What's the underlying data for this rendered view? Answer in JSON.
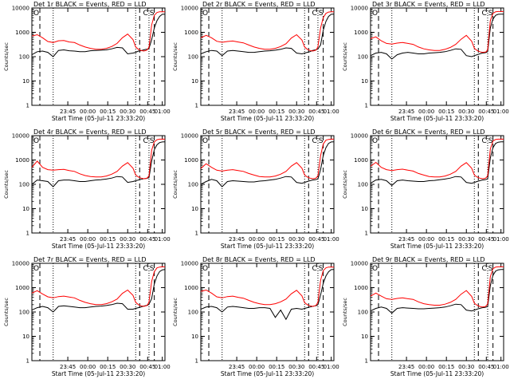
{
  "colors": {
    "events": "#000000",
    "lld": "#ff0000",
    "axes": "#000000",
    "background": "#ffffff"
  },
  "chart_data": {
    "type": "line",
    "layout": "3x3 grid of log-scale time-series panels",
    "x": [
      0,
      0.04,
      0.08,
      0.12,
      0.16,
      0.2,
      0.24,
      0.28,
      0.32,
      0.36,
      0.4,
      0.44,
      0.48,
      0.52,
      0.56,
      0.6,
      0.64,
      0.68,
      0.72,
      0.76,
      0.78,
      0.8,
      0.82,
      0.84,
      0.86,
      0.87,
      0.88,
      0.9,
      0.92,
      0.94,
      0.96,
      0.98,
      1.0
    ],
    "xlabel": "Start Time (05-Jul-11 23:33:20)",
    "xticks": [
      "23:45",
      "00:00",
      "00:15",
      "00:30",
      "00:45",
      "01:00"
    ],
    "ylabel": "Counts/sec",
    "yticks": [
      "1",
      "10",
      "100",
      "1000",
      "10000"
    ],
    "ylim": [
      1,
      10000
    ],
    "yscale": "log",
    "annotations": [
      "O",
      "C",
      "S"
    ],
    "legend": "in title: BLACK = Events, RED = LLD",
    "panels": [
      {
        "title": "Det 1r  BLACK = Events, RED = LLD",
        "series": [
          {
            "name": "Events",
            "color": "#000000",
            "values": [
              120,
              160,
              170,
              150,
              100,
              180,
              190,
              175,
              170,
              160,
              160,
              175,
              180,
              185,
              190,
              210,
              240,
              230,
              130,
              140,
              150,
              170,
              175,
              190,
              200,
              200,
              220,
              500,
              1500,
              3000,
              4500,
              5500,
              5500
            ]
          },
          {
            "name": "LLD",
            "color": "#ff0000",
            "values": [
              700,
              800,
              600,
              420,
              380,
              450,
              460,
              400,
              380,
              300,
              250,
              220,
              200,
              200,
              220,
              260,
              350,
              600,
              850,
              500,
              250,
              200,
              180,
              170,
              180,
              200,
              250,
              2000,
              5000,
              6500,
              7000,
              7000,
              7000
            ]
          }
        ]
      },
      {
        "title": "Det 2r  BLACK = Events, RED = LLD",
        "series": [
          {
            "name": "Events",
            "color": "#000000",
            "values": [
              130,
              160,
              180,
              170,
              110,
              170,
              180,
              170,
              160,
              150,
              150,
              160,
              170,
              175,
              185,
              200,
              230,
              220,
              140,
              130,
              140,
              150,
              160,
              180,
              190,
              195,
              210,
              300,
              1200,
              2800,
              4500,
              5500,
              5600
            ]
          },
          {
            "name": "LLD",
            "color": "#ff0000",
            "values": [
              600,
              750,
              600,
              430,
              390,
              420,
              440,
              400,
              370,
              300,
              250,
              220,
              200,
              200,
              220,
              260,
              340,
              580,
              800,
              480,
              250,
              200,
              180,
              170,
              180,
              200,
              260,
              1500,
              4000,
              6000,
              6800,
              7000,
              7000
            ]
          }
        ]
      },
      {
        "title": "Det 3r  BLACK = Events, RED = LLD",
        "series": [
          {
            "name": "Events",
            "color": "#000000",
            "values": [
              110,
              140,
              150,
              130,
              80,
              120,
              140,
              150,
              140,
              130,
              130,
              140,
              145,
              150,
              160,
              180,
              210,
              200,
              110,
              100,
              110,
              120,
              130,
              140,
              145,
              150,
              160,
              1500,
              3500,
              5000,
              5500,
              5600,
              5600
            ]
          },
          {
            "name": "LLD",
            "color": "#ff0000",
            "values": [
              550,
              650,
              450,
              350,
              330,
              360,
              380,
              350,
              320,
              250,
              210,
              190,
              180,
              180,
              200,
              240,
              320,
              520,
              750,
              430,
              220,
              180,
              160,
              150,
              155,
              160,
              200,
              3000,
              6000,
              7000,
              7200,
              7200,
              7200
            ]
          }
        ]
      },
      {
        "title": "Det 4r  BLACK = Events, RED = LLD",
        "series": [
          {
            "name": "Events",
            "color": "#000000",
            "values": [
              100,
              150,
              140,
              130,
              80,
              140,
              150,
              150,
              140,
              130,
              130,
              140,
              150,
              155,
              165,
              180,
              210,
              200,
              120,
              130,
              140,
              150,
              160,
              170,
              175,
              180,
              190,
              900,
              2600,
              4200,
              5200,
              5500,
              5600
            ]
          },
          {
            "name": "LLD",
            "color": "#ff0000",
            "values": [
              500,
              900,
              500,
              400,
              380,
              400,
              410,
              370,
              340,
              270,
              230,
              210,
              200,
              200,
              220,
              260,
              340,
              560,
              780,
              460,
              240,
              200,
              180,
              170,
              175,
              190,
              230,
              2500,
              5500,
              6800,
              7200,
              7200,
              7200
            ]
          }
        ]
      },
      {
        "title": "Det 5r  BLACK = Events, RED = LLD",
        "series": [
          {
            "name": "Events",
            "color": "#000000",
            "values": [
              100,
              130,
              160,
              140,
              80,
              130,
              140,
              135,
              130,
              125,
              125,
              135,
              140,
              150,
              160,
              180,
              210,
              200,
              120,
              110,
              120,
              130,
              140,
              150,
              155,
              160,
              170,
              400,
              1500,
              3200,
              4800,
              5500,
              5600
            ]
          },
          {
            "name": "LLD",
            "color": "#ff0000",
            "values": [
              450,
              700,
              500,
              380,
              350,
              380,
              400,
              370,
              340,
              280,
              240,
              210,
              200,
              200,
              220,
              260,
              340,
              560,
              780,
              460,
              240,
              200,
              180,
              170,
              175,
              190,
              230,
              1500,
              4500,
              6500,
              7000,
              7200,
              7200
            ]
          }
        ]
      },
      {
        "title": "Det 6r  BLACK = Events, RED = LLD",
        "series": [
          {
            "name": "Events",
            "color": "#000000",
            "values": [
              110,
              150,
              160,
              140,
              90,
              140,
              150,
              140,
              135,
              130,
              130,
              140,
              145,
              155,
              165,
              180,
              210,
              200,
              120,
              110,
              120,
              130,
              140,
              150,
              155,
              160,
              170,
              1200,
              3200,
              4800,
              5400,
              5600,
              5600
            ]
          },
          {
            "name": "LLD",
            "color": "#ff0000",
            "values": [
              550,
              800,
              500,
              400,
              370,
              400,
              420,
              380,
              350,
              280,
              240,
              210,
              200,
              200,
              220,
              260,
              340,
              560,
              780,
              460,
              240,
              200,
              180,
              170,
              175,
              190,
              230,
              2800,
              6000,
              7000,
              7200,
              7200,
              7200
            ]
          }
        ]
      },
      {
        "title": "Det 7r  BLACK = Events, RED = LLD",
        "series": [
          {
            "name": "Events",
            "color": "#000000",
            "values": [
              120,
              150,
              170,
              150,
              100,
              170,
              180,
              170,
              160,
              150,
              150,
              160,
              170,
              175,
              185,
              200,
              230,
              220,
              130,
              130,
              140,
              150,
              160,
              175,
              185,
              190,
              210,
              350,
              1400,
              3000,
              4600,
              5400,
              5600
            ]
          },
          {
            "name": "LLD",
            "color": "#ff0000",
            "values": [
              600,
              750,
              550,
              420,
              380,
              430,
              450,
              410,
              380,
              300,
              250,
              220,
              200,
              200,
              220,
              260,
              340,
              580,
              800,
              480,
              250,
              200,
              180,
              170,
              180,
              200,
              260,
              1800,
              4500,
              6500,
              7000,
              7200,
              7200
            ]
          }
        ]
      },
      {
        "title": "Det 8r  BLACK = Events, RED = LLD",
        "series": [
          {
            "name": "Events",
            "color": "#000000",
            "values": [
              130,
              160,
              170,
              150,
              100,
              160,
              170,
              160,
              150,
              140,
              140,
              150,
              150,
              140,
              60,
              120,
              50,
              130,
              140,
              130,
              140,
              150,
              160,
              170,
              180,
              185,
              200,
              500,
              1500,
              3000,
              4500,
              5500,
              5600
            ]
          },
          {
            "name": "LLD",
            "color": "#ff0000",
            "values": [
              700,
              800,
              600,
              420,
              380,
              430,
              450,
              400,
              370,
              300,
              250,
              220,
              200,
              200,
              220,
              260,
              340,
              560,
              780,
              460,
              240,
              200,
              180,
              170,
              180,
              200,
              260,
              2000,
              5000,
              6500,
              7000,
              7000,
              7000
            ]
          }
        ]
      },
      {
        "title": "Det 9r  BLACK = Events, RED = LLD",
        "series": [
          {
            "name": "Events",
            "color": "#000000",
            "values": [
              110,
              140,
              160,
              140,
              90,
              140,
              150,
              145,
              140,
              135,
              135,
              140,
              145,
              150,
              160,
              180,
              210,
              200,
              120,
              110,
              120,
              130,
              140,
              150,
              155,
              160,
              170,
              1200,
              3200,
              4800,
              5400,
              5600,
              5600
            ]
          },
          {
            "name": "LLD",
            "color": "#ff0000",
            "values": [
              450,
              600,
              450,
              350,
              330,
              360,
              380,
              350,
              330,
              260,
              220,
              200,
              190,
              190,
              210,
              250,
              330,
              540,
              760,
              440,
              230,
              190,
              170,
              160,
              165,
              180,
              220,
              2800,
              6000,
              7000,
              7200,
              7200,
              7200
            ]
          }
        ]
      }
    ]
  }
}
